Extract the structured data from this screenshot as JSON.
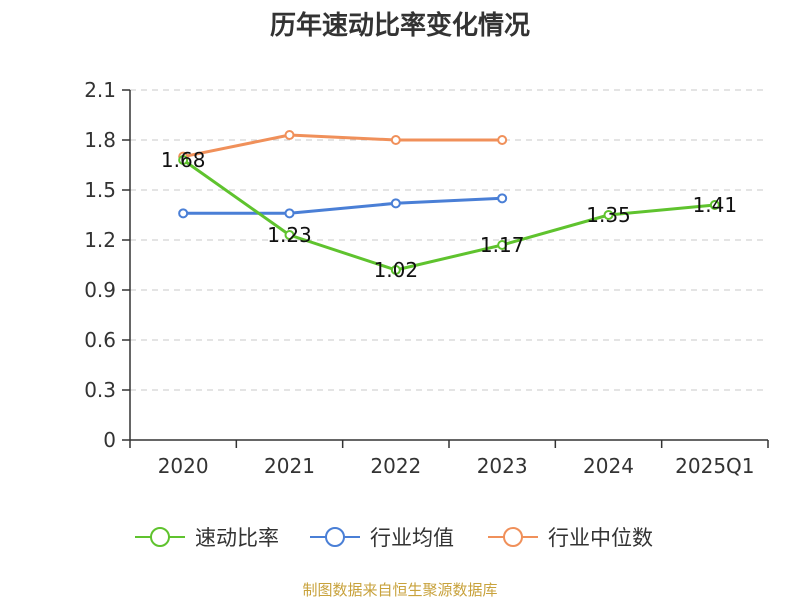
{
  "chart_data": {
    "type": "line",
    "title": "历年速动比率变化情况",
    "categories": [
      "2020",
      "2021",
      "2022",
      "2023",
      "2024",
      "2025Q1"
    ],
    "ylim": [
      0,
      2.1
    ],
    "yticks": [
      "0",
      "0.3",
      "0.6",
      "0.9",
      "1.2",
      "1.5",
      "1.8",
      "2.1"
    ],
    "ytick_values": [
      0,
      0.3,
      0.6,
      0.9,
      1.2,
      1.5,
      1.8,
      2.1
    ],
    "grid": true,
    "legend_position": "bottom",
    "series": [
      {
        "name": "速动比率",
        "color": "#5fc32e",
        "values": [
          1.68,
          1.23,
          1.02,
          1.17,
          1.35,
          1.41
        ],
        "labels": [
          "1.68",
          "1.23",
          "1.02",
          "1.17",
          "1.35",
          "1.41"
        ]
      },
      {
        "name": "行业均值",
        "color": "#4a7fd6",
        "values": [
          1.36,
          1.36,
          1.42,
          1.45,
          null,
          null
        ]
      },
      {
        "name": "行业中位数",
        "color": "#f0905a",
        "values": [
          1.7,
          1.83,
          1.8,
          1.8,
          null,
          null
        ]
      }
    ]
  },
  "source": "制图数据来自恒生聚源数据库"
}
